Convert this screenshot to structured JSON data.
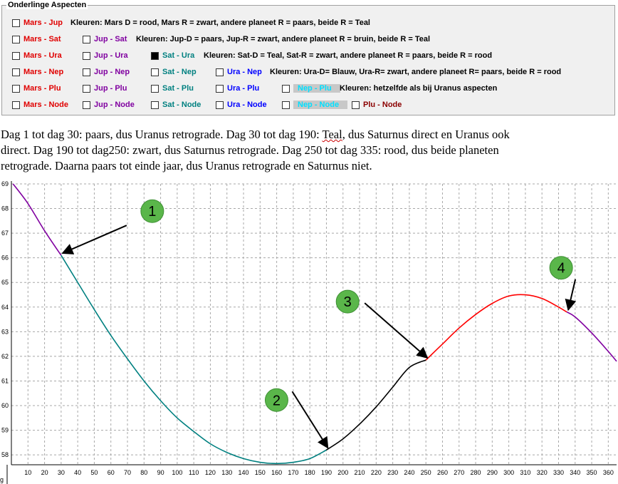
{
  "panel": {
    "title": "Onderlinge Aspecten",
    "rows": [
      {
        "items": [
          {
            "label": "Mars - Jup",
            "color": "#e00000",
            "checked": false
          }
        ],
        "note": "Kleuren: Mars D = rood, Mars R = zwart, andere planeet R = paars, beide R = Teal"
      },
      {
        "items": [
          {
            "label": "Mars - Sat",
            "color": "#e00000",
            "checked": false
          },
          {
            "label": "Jup - Sat",
            "color": "#8000a0",
            "checked": false
          }
        ],
        "note": "Kleuren: Jup-D = paars, Jup-R = zwart, andere planeet R = bruin, beide R = Teal"
      },
      {
        "items": [
          {
            "label": "Mars - Ura",
            "color": "#e00000",
            "checked": false
          },
          {
            "label": "Jup - Ura",
            "color": "#8000a0",
            "checked": false
          },
          {
            "label": "Sat - Ura",
            "color": "#008080",
            "checked": true
          }
        ],
        "note": "Kleuren: Sat-D = Teal, Sat-R = zwart, andere planeet R = paars, beide R = rood"
      },
      {
        "items": [
          {
            "label": "Mars - Nep",
            "color": "#e00000",
            "checked": false
          },
          {
            "label": "Jup - Nep",
            "color": "#8000a0",
            "checked": false
          },
          {
            "label": "Sat - Nep",
            "color": "#008080",
            "checked": false
          },
          {
            "label": "Ura - Nep",
            "color": "#0000ff",
            "checked": false
          }
        ],
        "note": "Kleuren: Ura-D= Blauw, Ura-R= zwart, andere planeet R= paars, beide R = rood"
      },
      {
        "items": [
          {
            "label": "Mars - Plu",
            "color": "#e00000",
            "checked": false
          },
          {
            "label": "Jup - Plu",
            "color": "#8000a0",
            "checked": false
          },
          {
            "label": "Sat - Plu",
            "color": "#008080",
            "checked": false
          },
          {
            "label": "Ura - Plu",
            "color": "#0000ff",
            "checked": false
          },
          {
            "label": "Nep - Plu",
            "color": "#00e0ff",
            "checked": false,
            "disabled": true
          }
        ],
        "note": "Kleuren: hetzelfde als bij Uranus aspecten"
      },
      {
        "items": [
          {
            "label": "Mars - Node",
            "color": "#e00000",
            "checked": false
          },
          {
            "label": "Jup - Node",
            "color": "#8000a0",
            "checked": false
          },
          {
            "label": "Sat - Node",
            "color": "#008080",
            "checked": false
          },
          {
            "label": "Ura - Node",
            "color": "#0000ff",
            "checked": false
          },
          {
            "label": "Nep - Node",
            "color": "#00e0ff",
            "checked": false,
            "disabled": true
          },
          {
            "label": "Plu - Node",
            "color": "#8b0000",
            "checked": false
          }
        ],
        "note": ""
      }
    ]
  },
  "description": {
    "line1_before": "Dag 1 tot dag 30: paars, dus Uranus retrograde. Dag 30 tot dag 190: ",
    "line1_teal": "Teal",
    "line1_after": ", dus Saturnus direct en Uranus ook",
    "line2": "direct. Dag 190 tot dag250: zwart, dus Saturnus retrograde. Dag 250 tot dag 335: rood, dus beide planeten",
    "line3": "retrograde. Daarna paars tot einde jaar, dus Uranus retrograde en Saturnus niet."
  },
  "chart_data": {
    "type": "line",
    "xlim": [
      0,
      365
    ],
    "ylim": [
      57.6,
      69
    ],
    "x_ticks": [
      10,
      20,
      30,
      40,
      50,
      60,
      70,
      80,
      90,
      100,
      110,
      120,
      130,
      140,
      150,
      160,
      170,
      180,
      190,
      200,
      210,
      220,
      230,
      240,
      250,
      260,
      270,
      280,
      290,
      300,
      310,
      320,
      330,
      340,
      350,
      360
    ],
    "y_ticks": [
      58,
      59,
      60,
      61,
      62,
      63,
      64,
      65,
      66,
      67,
      68,
      69
    ],
    "grid": true,
    "series": [
      {
        "color": "#8000a0",
        "points": [
          [
            1,
            69.0
          ],
          [
            10,
            68.2
          ],
          [
            20,
            67.1
          ],
          [
            30,
            66.1
          ]
        ]
      },
      {
        "color": "#008080",
        "points": [
          [
            30,
            66.1
          ],
          [
            40,
            65.0
          ],
          [
            50,
            63.9
          ],
          [
            60,
            62.85
          ],
          [
            70,
            61.9
          ],
          [
            80,
            61.0
          ],
          [
            90,
            60.2
          ],
          [
            100,
            59.5
          ],
          [
            110,
            58.95
          ],
          [
            120,
            58.45
          ],
          [
            130,
            58.1
          ],
          [
            140,
            57.85
          ],
          [
            150,
            57.7
          ],
          [
            160,
            57.65
          ],
          [
            170,
            57.7
          ],
          [
            180,
            57.85
          ],
          [
            190,
            58.2
          ]
        ]
      },
      {
        "color": "#000000",
        "points": [
          [
            190,
            58.2
          ],
          [
            200,
            58.65
          ],
          [
            210,
            59.25
          ],
          [
            220,
            59.95
          ],
          [
            230,
            60.75
          ],
          [
            240,
            61.55
          ],
          [
            250,
            61.85
          ]
        ]
      },
      {
        "color": "#ff0000",
        "points": [
          [
            250,
            61.85
          ],
          [
            260,
            62.5
          ],
          [
            270,
            63.15
          ],
          [
            280,
            63.7
          ],
          [
            290,
            64.15
          ],
          [
            300,
            64.45
          ],
          [
            310,
            64.5
          ],
          [
            320,
            64.35
          ],
          [
            330,
            64.0
          ],
          [
            335,
            63.8
          ]
        ]
      },
      {
        "color": "#8000a0",
        "points": [
          [
            335,
            63.8
          ],
          [
            340,
            63.6
          ],
          [
            350,
            62.95
          ],
          [
            360,
            62.2
          ],
          [
            365,
            61.8
          ]
        ]
      }
    ],
    "annotations": [
      {
        "label": "1",
        "x": 30,
        "y": 66.1
      },
      {
        "label": "2",
        "x": 190,
        "y": 58.2
      },
      {
        "label": "3",
        "x": 250,
        "y": 61.85
      },
      {
        "label": "4",
        "x": 335,
        "y": 63.8
      }
    ],
    "cropped_label": "g"
  }
}
